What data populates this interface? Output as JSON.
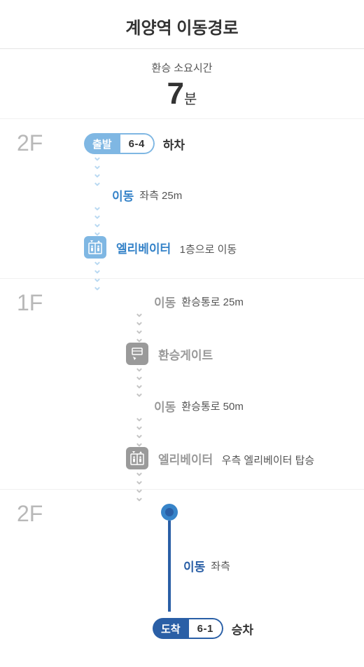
{
  "colors": {
    "light_blue": "#7fb7e3",
    "mid_blue": "#3784c9",
    "dark_blue": "#2a5fa6",
    "gray": "#9a9a9a",
    "text_dark": "#333333",
    "text_sub": "#555555",
    "chev_lightblue": "#b9d9f2",
    "chev_gray": "#c5c5c5"
  },
  "header": {
    "title": "계양역 이동경로"
  },
  "summary": {
    "label": "환승 소요시간",
    "number": "7",
    "unit": "분"
  },
  "sections": [
    {
      "floor": "2F",
      "steps": [
        {
          "type": "pill",
          "pill_left": "출발",
          "pill_right": "6-4",
          "pill_color_key": "light_blue",
          "pill_border_key": "light_blue",
          "text_after": "하차"
        },
        {
          "type": "connector",
          "color_key": "chev_lightblue"
        },
        {
          "type": "row",
          "label": "이동",
          "label_color_key": "mid_blue",
          "detail": "좌측 25m",
          "indent": 40
        },
        {
          "type": "connector",
          "color_key": "chev_lightblue"
        },
        {
          "type": "iconrow",
          "icon": "elevator",
          "icon_bg_key": "light_blue",
          "label": "엘리베이터",
          "label_color_key": "mid_blue",
          "detail": "1층으로 이동"
        },
        {
          "type": "connector",
          "color_key": "chev_lightblue",
          "continue": true
        }
      ]
    },
    {
      "floor": "1F",
      "indent": 60,
      "steps": [
        {
          "type": "row",
          "label": "이동",
          "label_color_key": "gray",
          "detail": "환승통로 25m",
          "indent": 40
        },
        {
          "type": "connector",
          "color_key": "chev_gray"
        },
        {
          "type": "iconrow",
          "icon": "gate",
          "icon_bg_key": "gray",
          "label": "환승게이트",
          "label_color_key": "gray",
          "detail": ""
        },
        {
          "type": "connector",
          "color_key": "chev_gray"
        },
        {
          "type": "row",
          "label": "이동",
          "label_color_key": "gray",
          "detail": "환승통로 50m",
          "indent": 40
        },
        {
          "type": "connector",
          "color_key": "chev_gray"
        },
        {
          "type": "iconrow",
          "icon": "elevator",
          "icon_bg_key": "gray",
          "label": "엘리베이터",
          "label_color_key": "gray",
          "detail": "우측 엘리베이터 탑승"
        },
        {
          "type": "connector",
          "color_key": "chev_gray",
          "continue": true
        }
      ]
    },
    {
      "floor": "2F",
      "custom": "section3",
      "dot_outer_key": "mid_blue",
      "dot_inner_key": "dark_blue",
      "line_color_key": "dark_blue",
      "move_label": "이동",
      "move_label_color_key": "dark_blue",
      "move_detail": "좌측",
      "pill_left": "도착",
      "pill_right": "6-1",
      "pill_color_key": "dark_blue",
      "text_after": "승차"
    }
  ]
}
